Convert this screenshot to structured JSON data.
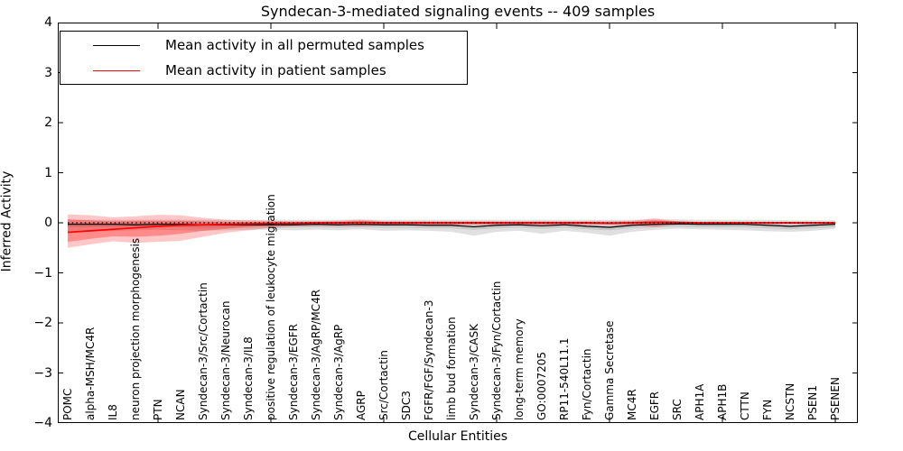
{
  "title": "Syndecan-3-mediated signaling events -- 409 samples",
  "chart_data": {
    "type": "line",
    "title": "Syndecan-3-mediated signaling events -- 409 samples",
    "xlabel": "Cellular Entities",
    "ylabel": "Inferred Activity",
    "ylim": [
      -4,
      4
    ],
    "ytick_labels": [
      "4",
      "3",
      "2",
      "1",
      "0",
      "−1",
      "−2",
      "−3",
      "−4"
    ],
    "ytick_values": [
      4,
      3,
      2,
      1,
      0,
      -1,
      -2,
      -3,
      -4
    ],
    "major_xtick_indices": [
      4,
      9,
      14,
      19,
      24,
      29,
      34
    ],
    "grid": false,
    "legend_position": "upper left",
    "zero_line": {
      "value": 0,
      "style": "dotted",
      "color": "#000000"
    },
    "categories": [
      "POMC",
      "alpha-MSH/MC4R",
      "IL8",
      "neuron projection morphogenesis",
      "PTN",
      "NCAN",
      "Syndecan-3/Src/Cortactin",
      "Syndecan-3/Neurocan",
      "Syndecan-3/IL8",
      "positive regulation of leukocyte migration",
      "Syndecan-3/EGFR",
      "Syndecan-3/AgRP/MC4R",
      "Syndecan-3/AgRP",
      "AGRP",
      "Src/Cortactin",
      "SDC3",
      "FGFR/FGF/Syndecan-3",
      "limb bud formation",
      "Syndecan-3/CASK",
      "Syndecan-3/Fyn/Cortactin",
      "long-term memory",
      "GO:0007205",
      "RP11-540L11.1",
      "Fyn/Cortactin",
      "Gamma Secretase",
      "MC4R",
      "EGFR",
      "SRC",
      "APH1A",
      "APH1B",
      "CTTN",
      "FYN",
      "NCSTN",
      "PSEN1",
      "PSENEN"
    ],
    "series": [
      {
        "name": "Mean activity in all permuted samples",
        "color": "#000000",
        "values": [
          -0.03,
          -0.03,
          -0.03,
          -0.04,
          -0.03,
          -0.03,
          -0.04,
          -0.04,
          -0.04,
          -0.04,
          -0.04,
          -0.03,
          -0.04,
          -0.03,
          -0.04,
          -0.04,
          -0.05,
          -0.05,
          -0.08,
          -0.05,
          -0.04,
          -0.06,
          -0.04,
          -0.07,
          -0.09,
          -0.05,
          -0.03,
          -0.02,
          -0.03,
          -0.03,
          -0.03,
          -0.05,
          -0.07,
          -0.05,
          -0.03
        ]
      },
      {
        "name": "Mean activity in patient samples",
        "color": "#ff0000",
        "values": [
          -0.19,
          -0.16,
          -0.13,
          -0.1,
          -0.07,
          -0.05,
          -0.04,
          -0.03,
          -0.02,
          -0.01,
          -0.01,
          0.0,
          0.0,
          0.01,
          0.0,
          0.0,
          0.0,
          0.0,
          0.0,
          0.0,
          0.0,
          0.0,
          0.0,
          0.0,
          -0.01,
          0.0,
          0.01,
          0.01,
          0.0,
          0.0,
          0.0,
          0.0,
          0.0,
          0.0,
          0.0
        ]
      }
    ],
    "bands": [
      {
        "name": "permuted-range-outer",
        "color": "#000000",
        "opacity": 0.12,
        "top": [
          0.06,
          0.06,
          0.06,
          0.06,
          0.06,
          0.06,
          0.06,
          0.06,
          0.06,
          0.06,
          0.06,
          0.06,
          0.06,
          0.07,
          0.06,
          0.06,
          0.06,
          0.06,
          0.06,
          0.06,
          0.06,
          0.06,
          0.06,
          0.06,
          0.06,
          0.06,
          0.07,
          0.07,
          0.06,
          0.06,
          0.06,
          0.06,
          0.05,
          0.05,
          0.05
        ],
        "bottom": [
          -0.2,
          -0.18,
          -0.16,
          -0.15,
          -0.14,
          -0.15,
          -0.16,
          -0.15,
          -0.14,
          -0.14,
          -0.15,
          -0.14,
          -0.15,
          -0.13,
          -0.16,
          -0.15,
          -0.16,
          -0.18,
          -0.26,
          -0.18,
          -0.16,
          -0.22,
          -0.16,
          -0.2,
          -0.26,
          -0.18,
          -0.14,
          -0.12,
          -0.13,
          -0.14,
          -0.15,
          -0.17,
          -0.18,
          -0.16,
          -0.12
        ]
      },
      {
        "name": "permuted-range-inner",
        "color": "#000000",
        "opacity": 0.1,
        "top": [
          0.0,
          0.0,
          0.0,
          -0.01,
          0.0,
          0.0,
          -0.01,
          -0.01,
          -0.01,
          -0.01,
          -0.01,
          0.0,
          -0.01,
          0.0,
          -0.01,
          -0.01,
          -0.02,
          -0.02,
          -0.05,
          -0.02,
          -0.01,
          -0.03,
          -0.01,
          -0.04,
          -0.06,
          -0.02,
          0.0,
          0.01,
          0.0,
          0.0,
          0.0,
          -0.02,
          -0.04,
          -0.02,
          0.0
        ],
        "bottom": [
          -0.09,
          -0.09,
          -0.09,
          -0.1,
          -0.09,
          -0.09,
          -0.1,
          -0.1,
          -0.1,
          -0.1,
          -0.1,
          -0.09,
          -0.1,
          -0.09,
          -0.1,
          -0.1,
          -0.11,
          -0.11,
          -0.14,
          -0.11,
          -0.1,
          -0.12,
          -0.1,
          -0.13,
          -0.15,
          -0.11,
          -0.09,
          -0.08,
          -0.09,
          -0.09,
          -0.09,
          -0.11,
          -0.13,
          -0.11,
          -0.09
        ]
      },
      {
        "name": "patient-range-outer",
        "color": "#ff0000",
        "opacity": 0.22,
        "top": [
          0.17,
          0.15,
          0.11,
          0.13,
          0.16,
          0.15,
          0.1,
          0.06,
          0.05,
          0.04,
          0.03,
          0.03,
          0.04,
          0.06,
          0.03,
          0.03,
          0.03,
          0.03,
          0.03,
          0.03,
          0.03,
          0.03,
          0.03,
          0.03,
          0.03,
          0.04,
          0.09,
          0.03,
          0.02,
          0.02,
          0.02,
          0.02,
          0.02,
          0.02,
          0.02
        ],
        "bottom": [
          -0.5,
          -0.43,
          -0.37,
          -0.4,
          -0.38,
          -0.36,
          -0.28,
          -0.2,
          -0.15,
          -0.1,
          -0.07,
          -0.06,
          -0.06,
          -0.07,
          -0.05,
          -0.04,
          -0.04,
          -0.04,
          -0.04,
          -0.04,
          -0.04,
          -0.04,
          -0.04,
          -0.04,
          -0.05,
          -0.05,
          -0.09,
          -0.04,
          -0.03,
          -0.03,
          -0.03,
          -0.03,
          -0.03,
          -0.03,
          -0.03
        ]
      },
      {
        "name": "patient-range-inner",
        "color": "#ff0000",
        "opacity": 0.3,
        "top": [
          0.07,
          0.05,
          0.03,
          0.04,
          0.04,
          0.04,
          0.03,
          0.02,
          0.02,
          0.02,
          0.02,
          0.02,
          0.02,
          0.03,
          0.02,
          0.02,
          0.02,
          0.02,
          0.02,
          0.02,
          0.02,
          0.02,
          0.02,
          0.02,
          0.02,
          0.02,
          0.05,
          0.02,
          0.01,
          0.01,
          0.01,
          0.01,
          0.01,
          0.01,
          0.01
        ],
        "bottom": [
          -0.38,
          -0.32,
          -0.27,
          -0.28,
          -0.26,
          -0.22,
          -0.16,
          -0.12,
          -0.08,
          -0.06,
          -0.04,
          -0.03,
          -0.03,
          -0.04,
          -0.03,
          -0.03,
          -0.03,
          -0.03,
          -0.03,
          -0.03,
          -0.03,
          -0.03,
          -0.03,
          -0.03,
          -0.03,
          -0.03,
          -0.05,
          -0.03,
          -0.02,
          -0.02,
          -0.02,
          -0.02,
          -0.02,
          -0.02,
          -0.02
        ]
      }
    ]
  }
}
